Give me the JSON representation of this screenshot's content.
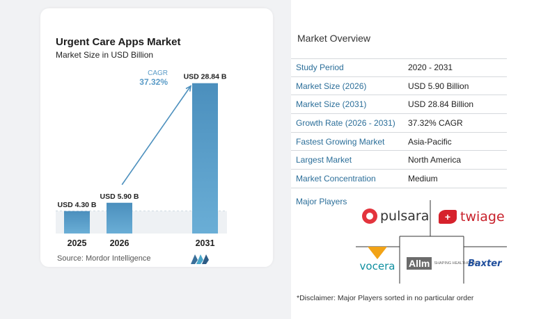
{
  "chart_data": {
    "type": "bar",
    "title": "Urgent Care Apps Market",
    "subtitle": "Market Size in USD Billion",
    "categories": [
      "2025",
      "2026",
      "2031"
    ],
    "values": [
      4.3,
      5.9,
      28.84
    ],
    "value_labels": [
      "USD 4.30 B",
      "USD 5.90 B",
      "USD 28.84 B"
    ],
    "cagr_label": "CAGR",
    "cagr_value": "37.32%",
    "xlabel": "",
    "ylabel": "",
    "ylim": [
      0,
      30
    ],
    "grid": false,
    "colors": {
      "bar_light": "#6aaed6",
      "bar_dark": "#4b8fbd",
      "cagr": "#5a9bc7",
      "arrow": "#4b8fbd",
      "dashed": "#a9bccb"
    }
  },
  "source": "Source:  Mordor Intelligence",
  "overview": {
    "title": "Market Overview",
    "rows": [
      {
        "key": "Study Period",
        "value": "2020 - 2031"
      },
      {
        "key": "Market Size (2026)",
        "value": "USD 5.90 Billion"
      },
      {
        "key": "Market Size (2031)",
        "value": "USD 28.84 Billion"
      },
      {
        "key": "Growth Rate (2026 - 2031)",
        "value": "37.32% CAGR"
      },
      {
        "key": "Fastest Growing Market",
        "value": "Asia-Pacific"
      },
      {
        "key": "Largest Market",
        "value": "North America"
      },
      {
        "key": "Market Concentration",
        "value": "Medium"
      }
    ]
  },
  "players": {
    "title": "Major Players",
    "names": [
      "pulsara",
      "twiage",
      "vocera",
      "Allm",
      "Baxter"
    ],
    "allm_tagline": "SHAPING HEALTHCARE"
  },
  "disclaimer": "*Disclaimer: Major Players sorted in no particular order"
}
